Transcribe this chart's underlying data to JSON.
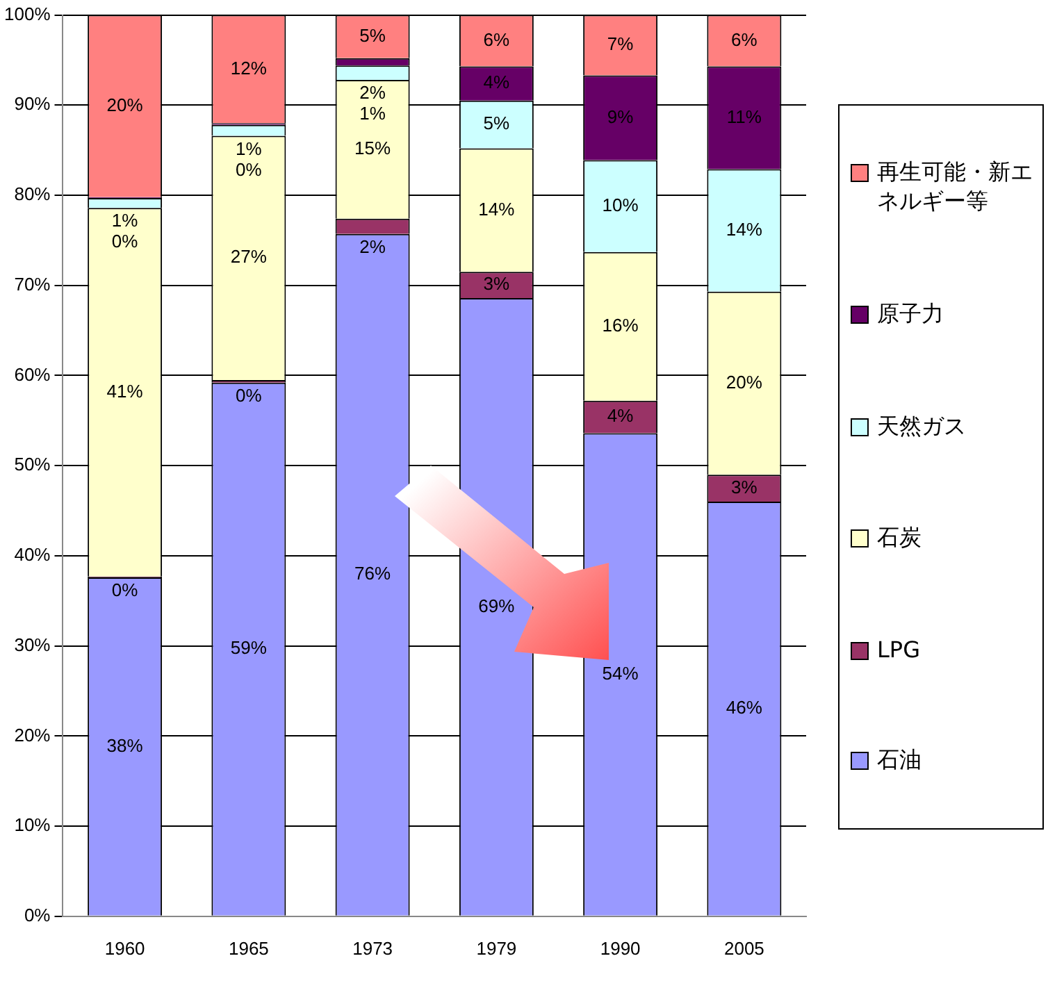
{
  "chart_data": {
    "type": "bar",
    "stacked": true,
    "categories": [
      "1960",
      "1965",
      "1973",
      "1979",
      "1990",
      "2005"
    ],
    "series": [
      {
        "name": "石油",
        "color": "#9999ff",
        "values": [
          37.6,
          59.2,
          75.7,
          68.6,
          53.6,
          46.0
        ],
        "value_labels": [
          "38%",
          "59%",
          "76%",
          "69%",
          "54%",
          "46%"
        ]
      },
      {
        "name": "LPG",
        "color": "#993366",
        "values": [
          0.1,
          0.3,
          1.7,
          2.9,
          3.6,
          3.0
        ],
        "value_labels": [
          "0%",
          "0%",
          "2%",
          "3%",
          "4%",
          "3%"
        ]
      },
      {
        "name": "石炭",
        "color": "#ffffcc",
        "values": [
          40.9,
          27.1,
          15.4,
          13.7,
          16.5,
          20.3
        ],
        "value_labels": [
          "41%",
          "27%",
          "15%",
          "14%",
          "16%",
          "20%"
        ]
      },
      {
        "name": "天然ガス",
        "color": "#ccffff",
        "values": [
          1.1,
          1.2,
          1.6,
          5.3,
          10.2,
          13.6
        ],
        "value_labels": [
          "1%",
          "1%",
          "2%",
          "5%",
          "10%",
          "14%"
        ]
      },
      {
        "name": "原子力",
        "color": "#660066",
        "values": [
          0.1,
          0.2,
          0.8,
          3.8,
          9.4,
          11.4
        ],
        "value_labels": [
          "0%",
          "0%",
          "1%",
          "4%",
          "9%",
          "11%"
        ]
      },
      {
        "name": "再生可能・新エネルギー等",
        "color": "#ff8080",
        "values": [
          20.2,
          12.0,
          4.8,
          5.7,
          6.7,
          5.7
        ],
        "value_labels": [
          "20%",
          "12%",
          "5%",
          "6%",
          "7%",
          "6%"
        ]
      }
    ],
    "ylim": [
      0,
      100
    ],
    "yticks": [
      {
        "value": 0,
        "label": "0%"
      },
      {
        "value": 10,
        "label": "10%"
      },
      {
        "value": 20,
        "label": "20%"
      },
      {
        "value": 30,
        "label": "30%"
      },
      {
        "value": 40,
        "label": "40%"
      },
      {
        "value": 50,
        "label": "50%"
      },
      {
        "value": 60,
        "label": "60%"
      },
      {
        "value": 70,
        "label": "70%"
      },
      {
        "value": 80,
        "label": "80%"
      },
      {
        "value": 90,
        "label": "90%"
      },
      {
        "value": 100,
        "label": "100%"
      }
    ],
    "grid": "y",
    "legend": "right"
  }
}
